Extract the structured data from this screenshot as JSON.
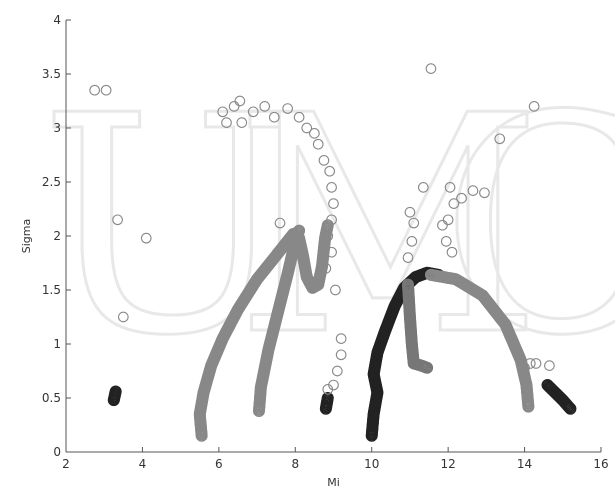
{
  "chart_data": {
    "type": "scatter",
    "title": "",
    "xlabel": "Mi",
    "ylabel": "Sigma",
    "xlim": [
      2,
      16
    ],
    "ylim": [
      0,
      4
    ],
    "xticks": [
      "2",
      "4",
      "6",
      "8",
      "10",
      "12",
      "14",
      "16"
    ],
    "yticks": [
      "0",
      "0.5",
      "1",
      "1.5",
      "2",
      "2.5",
      "3",
      "3.5",
      "4"
    ],
    "grid": false,
    "legend": "none",
    "series": [
      {
        "color": "#888888",
        "style": "dense-curve",
        "points": [
          [
            5.55,
            0.15
          ],
          [
            5.5,
            0.35
          ],
          [
            5.6,
            0.55
          ],
          [
            5.8,
            0.8
          ],
          [
            6.1,
            1.05
          ],
          [
            6.5,
            1.32
          ],
          [
            7.0,
            1.6
          ],
          [
            7.5,
            1.82
          ],
          [
            7.95,
            2.02
          ],
          [
            8.1,
            1.98
          ],
          [
            8.2,
            1.82
          ],
          [
            8.3,
            1.62
          ],
          [
            8.45,
            1.52
          ],
          [
            8.6,
            1.55
          ],
          [
            8.7,
            1.72
          ],
          [
            8.78,
            1.98
          ],
          [
            8.85,
            2.1
          ]
        ]
      },
      {
        "color": "#888888",
        "style": "dense-curve",
        "points": [
          [
            7.05,
            0.38
          ],
          [
            7.1,
            0.6
          ],
          [
            7.3,
            0.95
          ],
          [
            7.55,
            1.3
          ],
          [
            7.8,
            1.65
          ],
          [
            8.0,
            1.95
          ],
          [
            8.1,
            2.05
          ]
        ]
      },
      {
        "color": "#222222",
        "style": "dense-curve",
        "points": [
          [
            10.0,
            0.15
          ],
          [
            10.05,
            0.35
          ],
          [
            10.15,
            0.55
          ],
          [
            10.05,
            0.72
          ],
          [
            10.15,
            0.92
          ],
          [
            10.35,
            1.12
          ],
          [
            10.6,
            1.35
          ],
          [
            10.85,
            1.52
          ],
          [
            11.15,
            1.62
          ],
          [
            11.45,
            1.66
          ],
          [
            11.75,
            1.64
          ]
        ]
      },
      {
        "color": "#777777",
        "style": "dense-curve",
        "points": [
          [
            10.95,
            1.55
          ],
          [
            11.0,
            1.25
          ],
          [
            11.05,
            1.0
          ],
          [
            11.1,
            0.82
          ],
          [
            11.3,
            0.8
          ],
          [
            11.45,
            0.78
          ]
        ]
      },
      {
        "color": "#888888",
        "style": "dense-curve",
        "points": [
          [
            11.55,
            1.64
          ],
          [
            12.2,
            1.6
          ],
          [
            12.9,
            1.45
          ],
          [
            13.5,
            1.18
          ],
          [
            13.9,
            0.85
          ],
          [
            14.05,
            0.62
          ],
          [
            14.1,
            0.42
          ]
        ]
      },
      {
        "color": "#222222",
        "style": "dense-curve",
        "points": [
          [
            14.6,
            0.62
          ],
          [
            14.8,
            0.55
          ],
          [
            15.0,
            0.48
          ],
          [
            15.2,
            0.4
          ]
        ]
      },
      {
        "color": "#222222",
        "style": "dense-curve",
        "points": [
          [
            8.8,
            0.4
          ],
          [
            8.85,
            0.5
          ]
        ]
      },
      {
        "color": "#222222",
        "style": "dense-curve",
        "points": [
          [
            3.25,
            0.48
          ],
          [
            3.3,
            0.56
          ]
        ]
      },
      {
        "color": "#888888",
        "style": "open-circle",
        "points": [
          [
            2.75,
            3.35
          ],
          [
            3.05,
            3.35
          ],
          [
            3.35,
            2.15
          ],
          [
            3.5,
            1.25
          ],
          [
            4.1,
            1.98
          ],
          [
            6.1,
            3.15
          ],
          [
            6.2,
            3.05
          ],
          [
            6.4,
            3.2
          ],
          [
            6.55,
            3.25
          ],
          [
            6.6,
            3.05
          ],
          [
            6.9,
            3.15
          ],
          [
            7.2,
            3.2
          ],
          [
            7.45,
            3.1
          ],
          [
            7.6,
            2.12
          ],
          [
            7.8,
            3.18
          ],
          [
            8.1,
            3.1
          ],
          [
            8.3,
            3.0
          ],
          [
            8.5,
            2.95
          ],
          [
            8.6,
            2.85
          ],
          [
            8.75,
            2.7
          ],
          [
            8.9,
            2.6
          ],
          [
            8.95,
            2.45
          ],
          [
            9.0,
            2.3
          ],
          [
            8.95,
            2.15
          ],
          [
            8.85,
            2.0
          ],
          [
            8.95,
            1.85
          ],
          [
            8.8,
            1.7
          ],
          [
            9.05,
            1.5
          ],
          [
            9.2,
            1.05
          ],
          [
            9.2,
            0.9
          ],
          [
            9.1,
            0.75
          ],
          [
            9.0,
            0.62
          ],
          [
            8.85,
            0.58
          ],
          [
            11.55,
            3.55
          ],
          [
            11.35,
            2.45
          ],
          [
            11.0,
            2.22
          ],
          [
            11.1,
            2.12
          ],
          [
            11.05,
            1.95
          ],
          [
            10.95,
            1.8
          ],
          [
            11.85,
            2.1
          ],
          [
            11.95,
            1.95
          ],
          [
            12.1,
            1.85
          ],
          [
            12.0,
            2.15
          ],
          [
            12.15,
            2.3
          ],
          [
            12.35,
            2.35
          ],
          [
            12.65,
            2.42
          ],
          [
            12.95,
            2.4
          ],
          [
            13.35,
            2.9
          ],
          [
            14.25,
            3.2
          ],
          [
            12.05,
            2.45
          ],
          [
            13.9,
            0.85
          ],
          [
            14.0,
            0.78
          ],
          [
            14.3,
            0.82
          ],
          [
            14.65,
            0.8
          ],
          [
            14.15,
            0.82
          ]
        ]
      }
    ]
  }
}
